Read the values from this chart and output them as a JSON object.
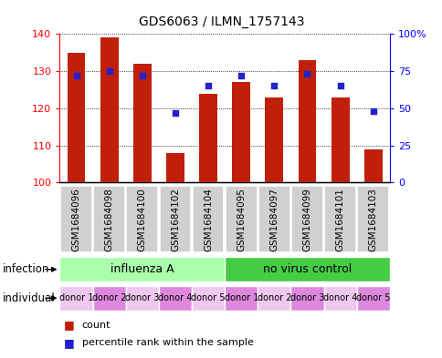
{
  "title": "GDS6063 / ILMN_1757143",
  "samples": [
    "GSM1684096",
    "GSM1684098",
    "GSM1684100",
    "GSM1684102",
    "GSM1684104",
    "GSM1684095",
    "GSM1684097",
    "GSM1684099",
    "GSM1684101",
    "GSM1684103"
  ],
  "counts": [
    135,
    139,
    132,
    108,
    124,
    127,
    123,
    133,
    123,
    109
  ],
  "percentiles": [
    72,
    75,
    72,
    47,
    65,
    72,
    65,
    73,
    65,
    48
  ],
  "ylim_left": [
    100,
    140
  ],
  "ylim_right": [
    0,
    100
  ],
  "yticks_left": [
    100,
    110,
    120,
    130,
    140
  ],
  "yticks_right": [
    0,
    25,
    50,
    75,
    100
  ],
  "ytick_labels_right": [
    "0",
    "25",
    "50",
    "75",
    "100%"
  ],
  "bar_color": "#C0200A",
  "dot_color": "#2222CC",
  "bar_width": 0.55,
  "inf_label1": "influenza A",
  "inf_label2": "no virus control",
  "inf_color1": "#AAFFAA",
  "inf_color2": "#44CC44",
  "individual_labels": [
    "donor 1",
    "donor 2",
    "donor 3",
    "donor 4",
    "donor 5",
    "donor 1",
    "donor 2",
    "donor 3",
    "donor 4",
    "donor 5"
  ],
  "ind_color_light": "#EEC8EE",
  "ind_color_dark": "#DD88DD",
  "sample_bg_color": "#D0D0D0",
  "legend_count_color": "#C0200A",
  "legend_dot_color": "#2222CC",
  "left_label_color": "#333333",
  "title_fontsize": 10,
  "axis_fontsize": 8,
  "sample_fontsize": 7.5,
  "ind_fontsize": 7,
  "legend_fontsize": 8
}
